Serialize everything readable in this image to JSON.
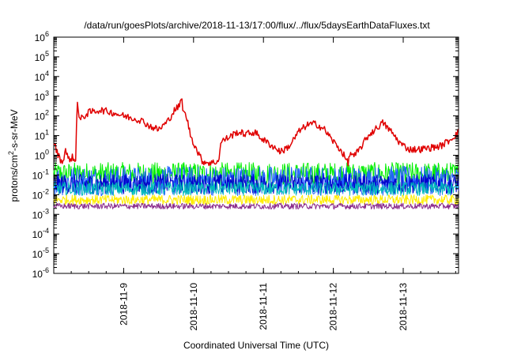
{
  "chart_data": {
    "type": "line",
    "title": "/data/run/goesPlots/archive/2018-11-13/17:00/flux/../flux/5daysEarthDataFluxes.txt",
    "xlabel": "Coordinated Universal Time (UTC)",
    "ylabel_parts": [
      "protons/cm",
      "2",
      "-s-sr-MeV"
    ],
    "yscale": "log",
    "ylim": [
      1e-06,
      1000000.0
    ],
    "xlim": [
      "2018-11-08 00:00",
      "2018-11-13 19:00"
    ],
    "y_ticks": [
      {
        "base": "10",
        "exp": "-6",
        "value": 1e-06
      },
      {
        "base": "10",
        "exp": "-5",
        "value": 1e-05
      },
      {
        "base": "10",
        "exp": "-4",
        "value": 0.0001
      },
      {
        "base": "10",
        "exp": "-3",
        "value": 0.001
      },
      {
        "base": "10",
        "exp": "-2",
        "value": 0.01
      },
      {
        "base": "10",
        "exp": "-1",
        "value": 0.1
      },
      {
        "base": "10",
        "exp": "0",
        "value": 1
      },
      {
        "base": "10",
        "exp": "1",
        "value": 10
      },
      {
        "base": "10",
        "exp": "2",
        "value": 100
      },
      {
        "base": "10",
        "exp": "3",
        "value": 1000
      },
      {
        "base": "10",
        "exp": "4",
        "value": 10000
      },
      {
        "base": "10",
        "exp": "5",
        "value": 100000
      },
      {
        "base": "10",
        "exp": "6",
        "value": 1000000
      }
    ],
    "x_ticks": [
      "2018-11-9",
      "2018-11-10",
      "2018-11-11",
      "2018-11-12",
      "2018-11-13"
    ],
    "grid": false,
    "series": [
      {
        "color": "#e00000",
        "noise": 0.35,
        "points": [
          [
            "2018-11-08 00:00",
            5
          ],
          [
            "2018-11-08 01:30",
            1.0
          ],
          [
            "2018-11-08 03:00",
            0.4
          ],
          [
            "2018-11-08 04:00",
            2.0
          ],
          [
            "2018-11-08 05:00",
            0.6
          ],
          [
            "2018-11-08 06:30",
            0.8
          ],
          [
            "2018-11-08 07:30",
            0.35
          ],
          [
            "2018-11-08 08:00",
            900
          ],
          [
            "2018-11-08 08:45",
            60
          ],
          [
            "2018-11-08 12:00",
            150
          ],
          [
            "2018-11-08 16:00",
            200
          ],
          [
            "2018-11-08 20:00",
            150
          ],
          [
            "2018-11-09 00:00",
            100
          ],
          [
            "2018-11-09 06:00",
            60
          ],
          [
            "2018-11-09 09:00",
            30
          ],
          [
            "2018-11-09 12:00",
            20
          ],
          [
            "2018-11-09 15:00",
            50
          ],
          [
            "2018-11-09 17:30",
            200
          ],
          [
            "2018-11-09 19:00",
            300
          ],
          [
            "2018-11-09 20:00",
            700
          ],
          [
            "2018-11-09 20:30",
            150
          ],
          [
            "2018-11-09 21:30",
            100
          ],
          [
            "2018-11-09 23:00",
            10
          ],
          [
            "2018-11-10 01:00",
            2
          ],
          [
            "2018-11-10 03:00",
            0.5
          ],
          [
            "2018-11-10 06:00",
            0.4
          ],
          [
            "2018-11-10 08:30",
            0.5
          ],
          [
            "2018-11-10 09:30",
            5
          ],
          [
            "2018-11-10 12:00",
            8
          ],
          [
            "2018-11-10 15:00",
            15
          ],
          [
            "2018-11-10 18:00",
            12
          ],
          [
            "2018-11-10 21:00",
            15
          ],
          [
            "2018-11-11 00:00",
            6
          ],
          [
            "2018-11-11 03:00",
            3
          ],
          [
            "2018-11-11 06:00",
            1.5
          ],
          [
            "2018-11-11 09:00",
            3
          ],
          [
            "2018-11-11 12:00",
            15
          ],
          [
            "2018-11-11 15:00",
            35
          ],
          [
            "2018-11-11 18:00",
            40
          ],
          [
            "2018-11-11 21:00",
            20
          ],
          [
            "2018-11-12 00:00",
            5
          ],
          [
            "2018-11-12 03:00",
            1.5
          ],
          [
            "2018-11-12 05:00",
            0.4
          ],
          [
            "2018-11-12 06:00",
            1.5
          ],
          [
            "2018-11-12 07:00",
            0.8
          ],
          [
            "2018-11-12 09:00",
            2
          ],
          [
            "2018-11-12 12:00",
            10
          ],
          [
            "2018-11-12 15:00",
            25
          ],
          [
            "2018-11-12 17:00",
            45
          ],
          [
            "2018-11-12 20:00",
            15
          ],
          [
            "2018-11-12 23:00",
            4
          ],
          [
            "2018-11-13 02:00",
            2
          ],
          [
            "2018-11-13 06:00",
            2
          ],
          [
            "2018-11-13 10:00",
            2.5
          ],
          [
            "2018-11-13 13:00",
            3
          ],
          [
            "2018-11-13 16:00",
            6
          ],
          [
            "2018-11-13 19:00",
            15
          ]
        ]
      },
      {
        "color": "#00ee00",
        "center": 0.11,
        "noise": 0.6,
        "points": [
          [
            "2018-11-08 00:00",
            0.11
          ],
          [
            "2018-11-13 19:00",
            0.11
          ]
        ]
      },
      {
        "color": "#2060ff",
        "center": 0.05,
        "noise": 0.75,
        "points": [
          [
            "2018-11-08 00:00",
            0.05
          ],
          [
            "2018-11-13 19:00",
            0.05
          ]
        ]
      },
      {
        "color": "#0000cc",
        "center": 0.035,
        "noise": 0.5,
        "points": [
          [
            "2018-11-08 00:00",
            0.035
          ],
          [
            "2018-11-13 19:00",
            0.035
          ]
        ]
      },
      {
        "color": "#00bbbb",
        "center": 0.02,
        "noise": 0.35,
        "points": [
          [
            "2018-11-08 00:00",
            0.02
          ],
          [
            "2018-11-13 19:00",
            0.02
          ]
        ]
      },
      {
        "color": "#ffee00",
        "center": 0.0055,
        "noise": 0.25,
        "points": [
          [
            "2018-11-08 00:00",
            0.0055
          ],
          [
            "2018-11-13 19:00",
            0.0055
          ]
        ]
      },
      {
        "color": "#8b2c8b",
        "center": 0.0026,
        "noise": 0.15,
        "points": [
          [
            "2018-11-08 00:00",
            0.0026
          ],
          [
            "2018-11-13 19:00",
            0.0026
          ]
        ]
      }
    ]
  }
}
